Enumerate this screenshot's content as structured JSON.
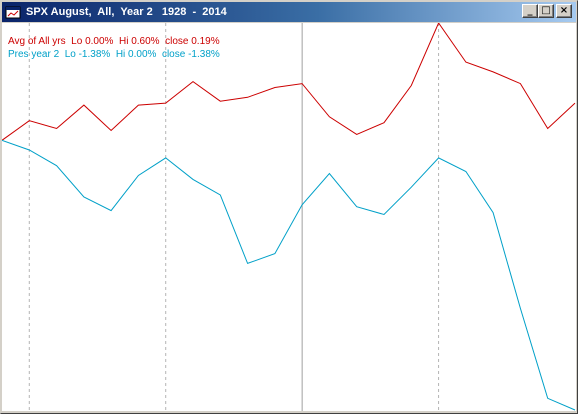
{
  "window": {
    "title": "SPX August,  All,  Year 2   1928  -  2014",
    "icon": "chart-app-icon",
    "controls": {
      "minimize": "_",
      "maximize": "□",
      "close": "×"
    }
  },
  "legend": {
    "avg_all": "Avg of All yrs  Lo 0.00%  Hi 0.60%  close 0.19%",
    "pres_year2": "Pres year 2  Lo -1.38%  Hi 0.00%  close -1.38%"
  },
  "chart_data": {
    "type": "line",
    "x": [
      1,
      2,
      3,
      4,
      5,
      6,
      7,
      8,
      9,
      10,
      11,
      12,
      13,
      14,
      15,
      16,
      17,
      18,
      19,
      20,
      21,
      22
    ],
    "xlabel": "",
    "ylabel": "",
    "grid": {
      "vertical_dashed_at_x": [
        2,
        7,
        17
      ],
      "vertical_solid_at_x": [
        12
      ]
    },
    "series": [
      {
        "name": "Avg of All yrs",
        "color": "#cc0000",
        "values": [
          0.0,
          0.1,
          0.06,
          0.18,
          0.05,
          0.18,
          0.19,
          0.3,
          0.2,
          0.22,
          0.27,
          0.29,
          0.12,
          0.03,
          0.09,
          0.28,
          0.6,
          0.4,
          0.35,
          0.29,
          0.06,
          0.19
        ]
      },
      {
        "name": "Pres year 2",
        "color": "#00a0c8",
        "values": [
          0.0,
          -0.05,
          -0.13,
          -0.29,
          -0.36,
          -0.18,
          -0.09,
          -0.2,
          -0.28,
          -0.63,
          -0.58,
          -0.33,
          -0.17,
          -0.34,
          -0.38,
          -0.24,
          -0.09,
          -0.16,
          -0.37,
          -0.86,
          -1.32,
          -1.38
        ]
      }
    ]
  }
}
